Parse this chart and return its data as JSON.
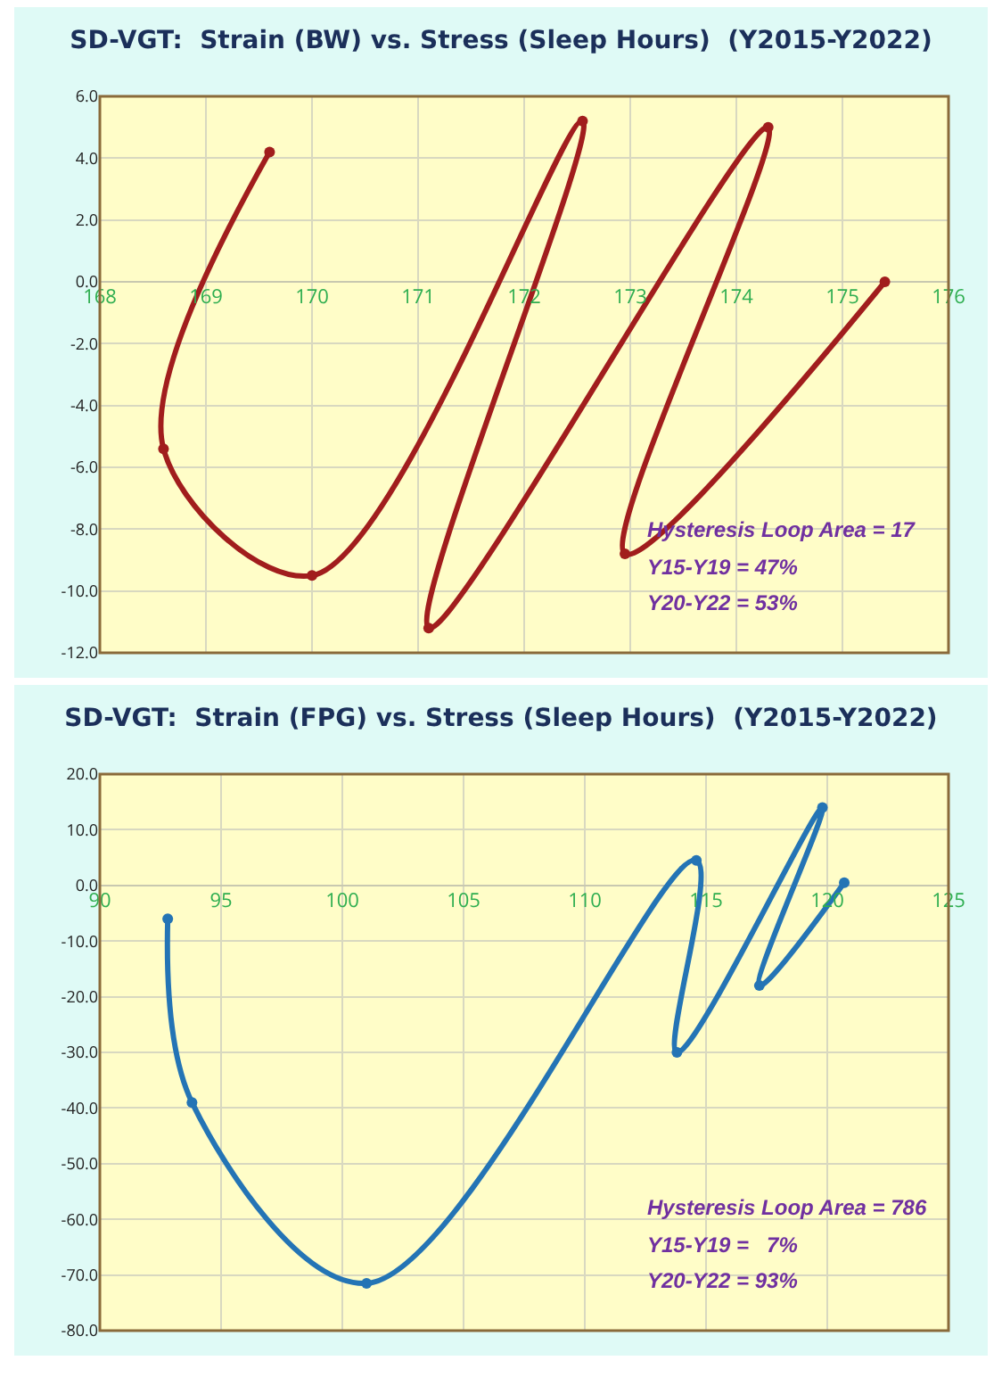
{
  "chart_data": [
    {
      "type": "line",
      "title": "SD-VGT:  Strain (BW) vs. Stress (Sleep Hours)  (Y2015-Y2022)",
      "series": [
        {
          "color": "#a11d1d",
          "x": [
            169.6,
            168.6,
            170.0,
            172.55,
            171.1,
            174.3,
            172.95,
            175.4
          ],
          "values": [
            4.2,
            -5.4,
            -9.5,
            5.2,
            -11.2,
            5.0,
            -8.8,
            0.0
          ]
        }
      ],
      "xlim": [
        168,
        176
      ],
      "xticks": [
        168,
        169,
        170,
        171,
        172,
        173,
        174,
        175,
        176
      ],
      "ylim": [
        -12,
        6
      ],
      "yticks": [
        {
          "value": -12,
          "label": "-12.0"
        },
        {
          "value": -10,
          "label": "-10.0"
        },
        {
          "value": -8,
          "label": "-8.0"
        },
        {
          "value": -6,
          "label": "-6.0"
        },
        {
          "value": -4,
          "label": "-4.0"
        },
        {
          "value": -2,
          "label": "-2.0"
        },
        {
          "value": 0,
          "label": "0.0"
        },
        {
          "value": 2,
          "label": "2.0"
        },
        {
          "value": 4,
          "label": "4.0"
        },
        {
          "value": 6,
          "label": "6.0"
        }
      ],
      "grid": true,
      "marker": "circle",
      "line_style": "solid",
      "annotations": [
        "Hysteresis Loop Area = 17",
        "Y15-Y19 = 47%",
        "Y20-Y22 = 53%"
      ]
    },
    {
      "type": "line",
      "title": "SD-VGT:  Strain (FPG) vs. Stress (Sleep Hours)  (Y2015-Y2022)",
      "series": [
        {
          "color": "#2474b5",
          "x": [
            92.8,
            93.8,
            101.0,
            114.6,
            113.8,
            119.8,
            117.2,
            120.7
          ],
          "values": [
            -6,
            -39,
            -71.5,
            4.5,
            -30,
            14,
            -18,
            0.5
          ]
        }
      ],
      "xlim": [
        90,
        125
      ],
      "xticks": [
        90,
        95,
        100,
        105,
        110,
        115,
        120,
        125
      ],
      "ylim": [
        -80,
        20
      ],
      "yticks": [
        {
          "value": -80,
          "label": "-80.0"
        },
        {
          "value": -70,
          "label": "-70.0"
        },
        {
          "value": -60,
          "label": "-60.0"
        },
        {
          "value": -50,
          "label": "-50.0"
        },
        {
          "value": -40,
          "label": "-40.0"
        },
        {
          "value": -30,
          "label": "-30.0"
        },
        {
          "value": -20,
          "label": "-20.0"
        },
        {
          "value": -10,
          "label": "-10.0"
        },
        {
          "value": 0,
          "label": "0.0"
        },
        {
          "value": 10,
          "label": "10.0"
        },
        {
          "value": 20,
          "label": "20.0"
        }
      ],
      "grid": true,
      "marker": "circle",
      "line_style": "solid",
      "annotations": [
        "Hysteresis Loop Area = 786",
        "Y15-Y19 =   7%",
        "Y20-Y22 = 93%"
      ]
    }
  ]
}
